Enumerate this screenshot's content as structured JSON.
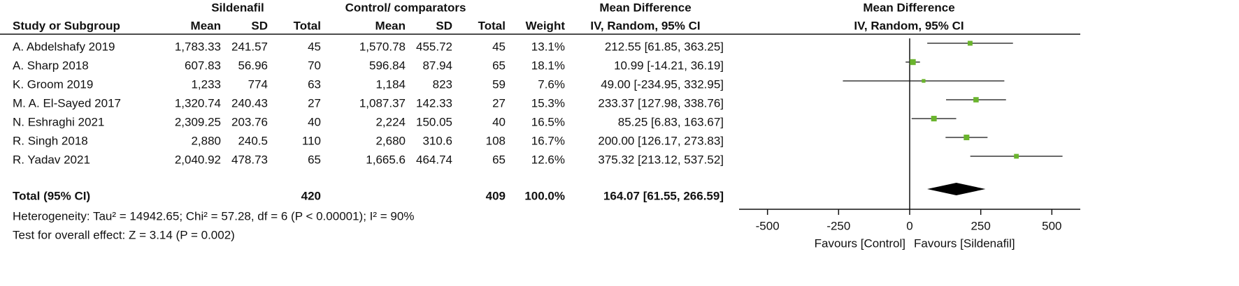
{
  "chart_data": {
    "type": "forest",
    "group_headers": [
      "Sildenafil",
      "Control/ comparators"
    ],
    "effect_header": [
      "Mean Difference",
      "IV, Random, 95% CI"
    ],
    "plot_header": [
      "Mean Difference",
      "IV, Random, 95% CI"
    ],
    "column_headers": [
      "Study or Subgroup",
      "Mean",
      "SD",
      "Total",
      "Mean",
      "SD",
      "Total",
      "Weight"
    ],
    "studies": [
      {
        "name": "A. Abdelshafy 2019",
        "exp_mean": "1,783.33",
        "exp_sd": 241.57,
        "exp_total": 45,
        "ctl_mean": "1,570.78",
        "ctl_sd": 455.72,
        "ctl_total": 45,
        "weight": 13.1,
        "weight_label": "13.1%",
        "md": 212.55,
        "lo": 61.85,
        "hi": 363.25,
        "ci_label": "212.55 [61.85, 363.25]"
      },
      {
        "name": "A. Sharp 2018",
        "exp_mean": 607.83,
        "exp_sd": 56.96,
        "exp_total": 70,
        "ctl_mean": 596.84,
        "ctl_sd": 87.94,
        "ctl_total": 65,
        "weight": 18.1,
        "weight_label": "18.1%",
        "md": 10.99,
        "lo": -14.21,
        "hi": 36.19,
        "ci_label": "10.99 [-14.21, 36.19]"
      },
      {
        "name": "K. Groom 2019",
        "exp_mean": "1,233",
        "exp_sd": 774,
        "exp_total": 63,
        "ctl_mean": "1,184",
        "ctl_sd": 823,
        "ctl_total": 59,
        "weight": 7.6,
        "weight_label": "7.6%",
        "md": 49.0,
        "lo": -234.95,
        "hi": 332.95,
        "ci_label": "49.00 [-234.95, 332.95]"
      },
      {
        "name": "M. A. El-Sayed 2017",
        "exp_mean": "1,320.74",
        "exp_sd": 240.43,
        "exp_total": 27,
        "ctl_mean": "1,087.37",
        "ctl_sd": 142.33,
        "ctl_total": 27,
        "weight": 15.3,
        "weight_label": "15.3%",
        "md": 233.37,
        "lo": 127.98,
        "hi": 338.76,
        "ci_label": "233.37 [127.98, 338.76]"
      },
      {
        "name": "N. Eshraghi 2021",
        "exp_mean": "2,309.25",
        "exp_sd": 203.76,
        "exp_total": 40,
        "ctl_mean": "2,224",
        "ctl_sd": 150.05,
        "ctl_total": 40,
        "weight": 16.5,
        "weight_label": "16.5%",
        "md": 85.25,
        "lo": 6.83,
        "hi": 163.67,
        "ci_label": "85.25 [6.83, 163.67]"
      },
      {
        "name": "R. Singh 2018",
        "exp_mean": "2,880",
        "exp_sd": 240.5,
        "exp_total": 110,
        "ctl_mean": "2,680",
        "ctl_sd": 310.6,
        "ctl_total": 108,
        "weight": 16.7,
        "weight_label": "16.7%",
        "md": 200.0,
        "lo": 126.17,
        "hi": 273.83,
        "ci_label": "200.00 [126.17, 273.83]"
      },
      {
        "name": "R. Yadav 2021",
        "exp_mean": "2,040.92",
        "exp_sd": 478.73,
        "exp_total": 65,
        "ctl_mean": "1,665.6",
        "ctl_sd": 464.74,
        "ctl_total": 65,
        "weight": 12.6,
        "weight_label": "12.6%",
        "md": 375.32,
        "lo": 213.12,
        "hi": 537.52,
        "ci_label": "375.32 [213.12, 537.52]"
      }
    ],
    "total": {
      "name": "Total (95% CI)",
      "exp_total": 420,
      "ctl_total": 409,
      "weight_label": "100.0%",
      "md": 164.07,
      "lo": 61.55,
      "hi": 266.59,
      "ci_label": "164.07 [61.55, 266.59]"
    },
    "heterogeneity": "Heterogeneity: Tau² = 14942.65; Chi² = 57.28, df = 6 (P < 0.00001); I² = 90%",
    "overall_effect": "Test for overall effect: Z = 3.14 (P = 0.002)",
    "xlim": [
      -600,
      600
    ],
    "xticks": [
      -500,
      -250,
      0,
      250,
      500
    ],
    "favours": [
      "Favours [Control]",
      "Favours [Sildenafil]"
    ],
    "marker_color": "#6ab42d"
  }
}
